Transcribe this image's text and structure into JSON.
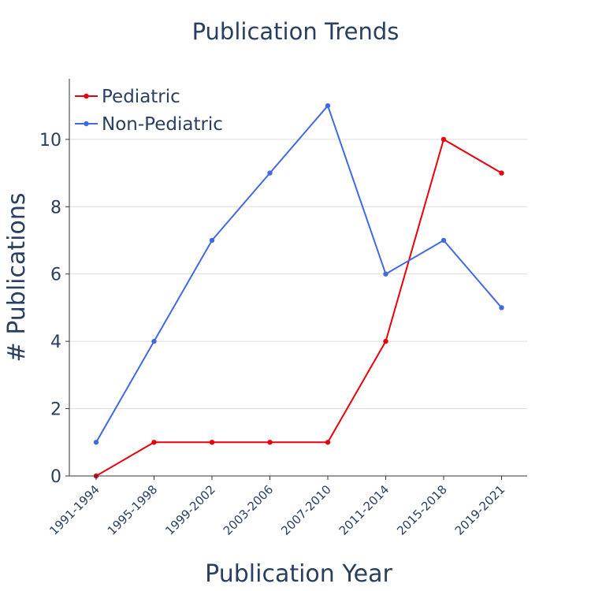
{
  "chart_data": {
    "type": "line",
    "title": "Publication Trends",
    "xlabel": "Publication Year",
    "ylabel": "# Publications",
    "categories": [
      "1991-1994",
      "1995-1998",
      "1999-2002",
      "2003-2006",
      "2007-2010",
      "2011-2014",
      "2015-2018",
      "2019-2021"
    ],
    "ylim": [
      0,
      11.8
    ],
    "yticks": [
      0,
      2,
      4,
      6,
      8,
      10
    ],
    "grid": true,
    "legend_position": "top-left",
    "series": [
      {
        "name": "Pediatric",
        "color": "#e8000b",
        "values": [
          0,
          1,
          1,
          1,
          1,
          4,
          10,
          9
        ]
      },
      {
        "name": "Non-Pediatric",
        "color": "#4169e1",
        "values": [
          1,
          4,
          7,
          9,
          11,
          6,
          7,
          5
        ]
      }
    ]
  }
}
